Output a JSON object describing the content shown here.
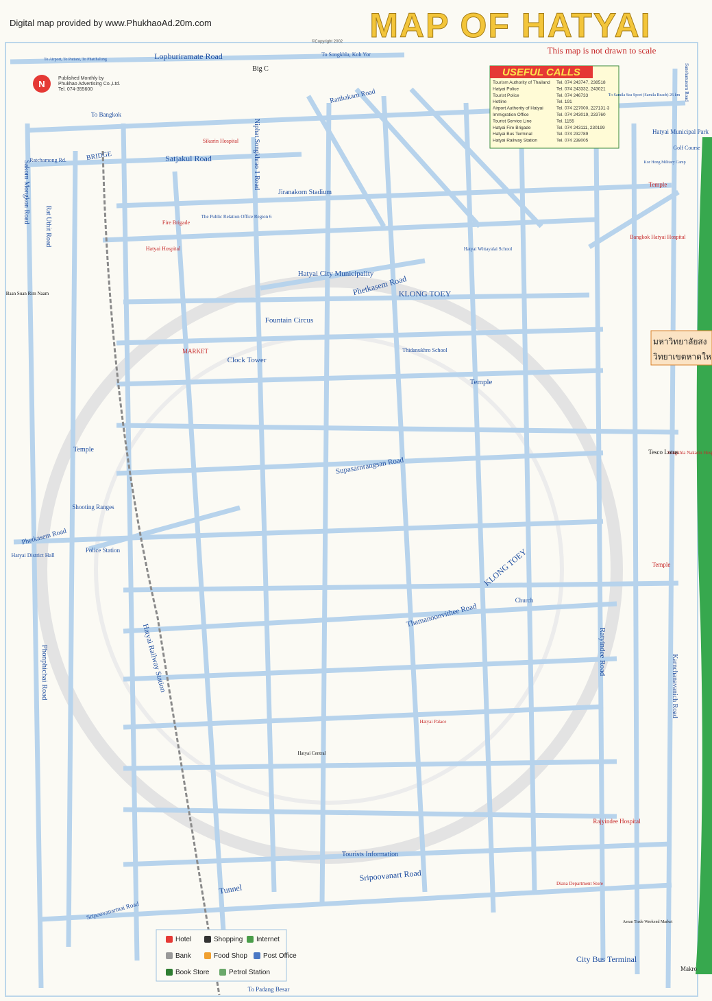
{
  "header": {
    "provider": "Digital map provided by www.PhukhaoAd.20m.com",
    "title": "MAP OF HATYAI",
    "subtitle": "This map is not drawn to scale",
    "copyright": "©Copyright 2002"
  },
  "publisher": [
    "Published Monthly by",
    "Phukhao Advertising Co.,Ltd.",
    "Tel. 074-355600"
  ],
  "useful_calls": {
    "title": "USEFUL CALLS",
    "rows": [
      [
        "Tourism Authority of Thailand",
        "Tel. 074 243747, 238518"
      ],
      [
        "Hatyai Police",
        "Tel. 074 243332, 243021"
      ],
      [
        "Tourist Police",
        "Tel. 074 246733"
      ],
      [
        "Hotline",
        "Tel. 191"
      ],
      [
        "Airport Authority of Hatyai",
        "Tel. 074 227000, 227131-3"
      ],
      [
        "Immigration Office",
        "Tel. 074 243019, 233760"
      ],
      [
        "Tourist Service Line",
        "Tel. 1155"
      ],
      [
        "Hatyai Fire Brigade",
        "Tel. 074 243111, 230199"
      ],
      [
        "Hatyai Bus Terminal",
        "Tel. 074 232789"
      ],
      [
        "Hatyai Railway Station",
        "Tel. 074 238005"
      ]
    ]
  },
  "roads": [
    "Lopburiramate Road",
    "To Airport, To Pattani, To Phatthalung",
    "To Songkhla, Koh Yor",
    "Ratthakarn Road",
    "Satjakul Road",
    "Ratchamong Rd.",
    "Niphat Songkhrao 1 Road",
    "Phetkasem Road",
    "KLONG TOEY",
    "Thamanoonvithee Road",
    "Supasarnrangsan Road",
    "Sripoovanart Road",
    "Ratyindee Road",
    "Karnchanavanich Road",
    "Phonphichai Road",
    "Rat Uthit Road",
    "Sakorn Mongkon Road",
    "Hatyai Railway Station",
    "Tunnel",
    "Sripoovanartnai Road",
    "BRIDGE",
    "Phetkasem Road",
    "KLONG TOEY",
    "Sanehanusorn Road"
  ],
  "places": [
    "Big C",
    "Sikarin Hospital",
    "Jiranakorn Stadium",
    "Fire Brigade",
    "The Public Relation Office Region 6",
    "Hatyai Hospital",
    "Hatyai City Municipality",
    "Fountain Circus",
    "Clock Tower",
    "MARKET",
    "Temple",
    "Temple",
    "Police Station",
    "Shooting Ranges",
    "Hatyai District Hall",
    "Hatyai Municipal Park",
    "Golf Course",
    "Bangkok Hatyai Hospital",
    "Songkhla Nakarin Hospital",
    "Tesco Lotus",
    "Rajyindee Hospital",
    "City Bus Terminal",
    "Makro",
    "Tourists Information",
    "To Padang Besar",
    "To Bangkok",
    "Thidanukhro School",
    "Hatyai Wittayalai School",
    "Church",
    "Hatyai Central",
    "Hatyai Palace",
    "Diana Department Store",
    "Asean Trade Weekend Market",
    "To Samila Sea Sport (Samila Beach) 26 km",
    "Kor Hong Military Camp",
    "Baan Suan Rim Naam",
    "Temple",
    "Temple"
  ],
  "banner": [
    "มหาวิทยาลัยสง",
    "วิทยาเขตหาดให"
  ],
  "legend": [
    "Hotel",
    "Shopping",
    "Internet",
    "Bank",
    "Food Shop",
    "Post Office",
    "Book Store",
    "Petrol Station"
  ]
}
